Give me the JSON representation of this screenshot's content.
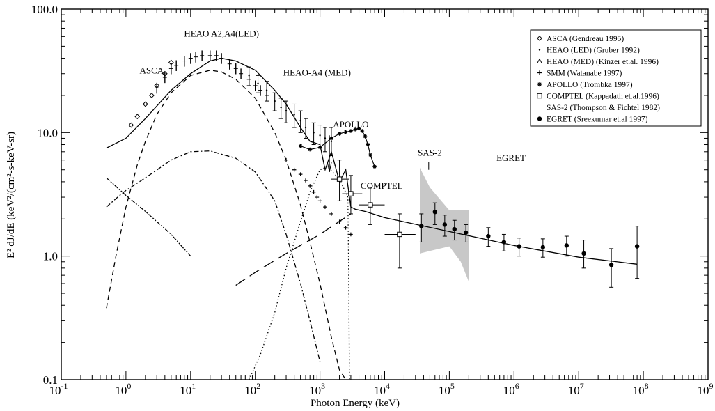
{
  "chart_data": {
    "type": "scatter",
    "title": "",
    "xlabel": "Photon Energy (keV)",
    "ylabel": "E² dJ/dE (keV²/(cm²-s-keV-sr)",
    "x_scale": "log",
    "y_scale": "log",
    "xlim": [
      0.1,
      1000000000
    ],
    "ylim": [
      0.1,
      100
    ],
    "grid": false,
    "legend_position": "top-right",
    "x_ticks": [
      {
        "base": "10",
        "exp": "-1"
      },
      {
        "base": "10",
        "exp": "0"
      },
      {
        "base": "10",
        "exp": "1"
      },
      {
        "base": "10",
        "exp": "2"
      },
      {
        "base": "10",
        "exp": "3"
      },
      {
        "base": "10",
        "exp": "4"
      },
      {
        "base": "10",
        "exp": "5"
      },
      {
        "base": "10",
        "exp": "6"
      },
      {
        "base": "10",
        "exp": "7"
      },
      {
        "base": "10",
        "exp": "8"
      },
      {
        "base": "10",
        "exp": "9"
      }
    ],
    "y_ticks": [
      {
        "value": 0.1,
        "label": "0.1"
      },
      {
        "value": 1,
        "label": "1.0"
      },
      {
        "value": 10,
        "label": "10.0"
      },
      {
        "value": 100,
        "label": "100.0"
      }
    ],
    "legend": [
      {
        "marker": "diamond",
        "label": "ASCA (Gendreau 1995)"
      },
      {
        "marker": "dot",
        "label": "HEAO (LED) (Gruber 1992)"
      },
      {
        "marker": "triangle",
        "label": "HEAO (MED) (Kinzer et.al. 1996)"
      },
      {
        "marker": "plus",
        "label": "SMM (Watanabe 1997)"
      },
      {
        "marker": "asterisk",
        "label": "APOLLO (Trombka 1997)"
      },
      {
        "marker": "square",
        "label": "COMPTEL (Kappadath et.al.1996)"
      },
      {
        "marker": "none",
        "label": "SAS-2 (Thompson & Fichtel 1982)"
      },
      {
        "marker": "filled-circle",
        "label": "EGRET (Sreekumar et.al 1997)"
      }
    ],
    "annotations": [
      {
        "text": "ASCA",
        "x": 2.5,
        "y": 30
      },
      {
        "text": "HEAO A2,A4(LED)",
        "x": 30,
        "y": 60
      },
      {
        "text": "HEAO-A4 (MED)",
        "x": 900,
        "y": 29
      },
      {
        "text": "APOLLO",
        "x": 3000,
        "y": 11
      },
      {
        "text": "COMPTEL",
        "x": 9000,
        "y": 3.5
      },
      {
        "text": "SAS-2",
        "x": 50000,
        "y": 6.5
      },
      {
        "text": "EGRET",
        "x": 900000,
        "y": 5.9
      }
    ],
    "series": [
      {
        "name": "ASCA (Gendreau 1995)",
        "style": "diamond",
        "x": [
          1.2,
          1.5,
          2,
          2.5,
          3,
          4,
          5
        ],
        "y": [
          11.5,
          13.5,
          17,
          20,
          24,
          30,
          37
        ]
      },
      {
        "name": "HEAO (LED) (Gruber 1992)",
        "style": "bars",
        "x": [
          3,
          4,
          5,
          6,
          8,
          10,
          12,
          15,
          20,
          25,
          30,
          40,
          50,
          60,
          80,
          100,
          120,
          150
        ],
        "y": [
          23,
          28,
          33,
          35,
          38,
          40,
          41,
          42,
          42,
          42,
          40,
          36,
          33,
          30,
          27,
          24,
          22,
          20
        ]
      },
      {
        "name": "HEAO (MED) (Kinzer et.al. 1996)",
        "style": "errorbar",
        "x": [
          80,
          110,
          150,
          200,
          250,
          300,
          400,
          500,
          600,
          800,
          1000,
          1200,
          1500
        ],
        "y": [
          29,
          25,
          22,
          18,
          16,
          15,
          14,
          12.5,
          11,
          10,
          9.5,
          9,
          8.5
        ],
        "err_lo": [
          24,
          21,
          18,
          15,
          13,
          12,
          11,
          10,
          9,
          8,
          7.5,
          7,
          6.5
        ],
        "err_hi": [
          34,
          29,
          26,
          21,
          19,
          18,
          17,
          15,
          13,
          12,
          11.5,
          11,
          11
        ]
      },
      {
        "name": "SMM (Watanabe 1997)",
        "style": "plus",
        "x": [
          300,
          400,
          500,
          600,
          700,
          800,
          900,
          1000,
          1200,
          1500,
          2000,
          2500,
          3000
        ],
        "y": [
          6,
          5,
          4.6,
          4.1,
          3.7,
          3.3,
          3,
          2.8,
          2.5,
          2.2,
          1.9,
          1.7,
          1.5
        ]
      },
      {
        "name": "APOLLO (Trombka 1997)",
        "style": "asterisk-line",
        "x": [
          500,
          700,
          1000,
          1500,
          2000,
          2500,
          3000,
          3500,
          4000,
          4500,
          5000,
          5500,
          6000,
          7000
        ],
        "y": [
          7.8,
          7.3,
          7.6,
          9,
          9.8,
          10.1,
          10.3,
          10.6,
          10.8,
          10.3,
          9.3,
          8.0,
          6.6,
          5.3
        ]
      },
      {
        "name": "COMPTEL (Kappadath et.al.1996)",
        "style": "square",
        "x": [
          2000,
          3000,
          6000,
          17000
        ],
        "y": [
          4.2,
          3.2,
          2.6,
          1.5
        ],
        "err_lo": [
          2.8,
          2.2,
          1.8,
          0.8
        ],
        "err_hi": [
          6,
          4.5,
          3.6,
          2.2
        ],
        "x_lo": [
          1500,
          2200,
          4000,
          10000
        ],
        "x_hi": [
          2800,
          4500,
          10000,
          30000
        ]
      },
      {
        "name": "SAS-2 (Thompson & Fichtel 1982)",
        "style": "band",
        "x": [
          35000,
          35000,
          50000,
          100000,
          200000,
          200000,
          150000,
          100000,
          50000
        ],
        "y": [
          1.05,
          5.2,
          3.6,
          2.35,
          2.35,
          0.62,
          0.9,
          1.2,
          1.1
        ]
      },
      {
        "name": "EGRET (Sreekumar et.al 1997)",
        "style": "filled-circle",
        "x": [
          37000,
          60000,
          85000,
          120000,
          180000,
          400000,
          700000,
          1200000,
          2800000,
          6500000,
          12000000,
          32000000,
          80000000
        ],
        "y": [
          1.75,
          2.28,
          1.8,
          1.65,
          1.55,
          1.45,
          1.3,
          1.2,
          1.18,
          1.22,
          1.05,
          0.85,
          1.2
        ],
        "err_lo": [
          1.3,
          1.8,
          1.45,
          1.35,
          1.3,
          1.2,
          1.1,
          1.0,
          0.98,
          1.0,
          0.8,
          0.56,
          0.66
        ],
        "err_hi": [
          2.2,
          2.7,
          2.15,
          1.95,
          1.8,
          1.7,
          1.5,
          1.4,
          1.38,
          1.45,
          1.35,
          1.15,
          1.75
        ]
      }
    ],
    "model_curves": [
      {
        "id": "total",
        "dash": "",
        "x": [
          0.5,
          1,
          2,
          5,
          10,
          20,
          30,
          50,
          100,
          200,
          300,
          500,
          700,
          1000,
          1200,
          1500,
          2000,
          2500,
          3000,
          3500,
          5000,
          10000,
          100000,
          1000000,
          10000000,
          80000000
        ],
        "y": [
          7.5,
          9,
          13,
          22,
          30,
          38,
          40,
          38,
          32,
          22,
          17,
          11,
          8.5,
          8,
          5,
          7,
          4,
          5,
          2.5,
          2.4,
          2.3,
          2.05,
          1.58,
          1.22,
          0.98,
          0.86
        ]
      },
      {
        "id": "thermal-dashed",
        "dash": "7,5",
        "x": [
          0.5,
          0.7,
          1,
          1.5,
          2,
          3,
          5,
          10,
          20,
          30,
          50,
          100,
          200,
          300,
          500,
          700,
          1000,
          1500,
          2000,
          2500
        ],
        "y": [
          0.38,
          1.0,
          2.5,
          5.5,
          8.5,
          14,
          21,
          29,
          32,
          31,
          27,
          19,
          10,
          6,
          2.6,
          1.3,
          0.6,
          0.22,
          0.12,
          0.1
        ]
      },
      {
        "id": "dash-dot",
        "dash": "7,3,2,3",
        "x": [
          0.5,
          0.8,
          1,
          2,
          5,
          10,
          20,
          50,
          100,
          200,
          300,
          500,
          700,
          1000
        ],
        "y": [
          2.5,
          3.1,
          3.4,
          4.3,
          6.0,
          7.0,
          7.1,
          6.2,
          4.8,
          2.8,
          1.5,
          0.6,
          0.3,
          0.14
        ]
      },
      {
        "id": "dash-dot-dot",
        "dash": "6,2,2,2,2,2",
        "x": [
          0.5,
          1,
          2,
          5,
          10
        ],
        "y": [
          4.3,
          3.1,
          2.3,
          1.5,
          1.0
        ]
      },
      {
        "id": "long-dash",
        "dash": "16,8",
        "x": [
          50,
          100,
          300,
          1000,
          3000
        ],
        "y": [
          0.58,
          0.74,
          1.05,
          1.5,
          2.2
        ]
      },
      {
        "id": "dotted",
        "dash": "1.5,3",
        "x": [
          80,
          120,
          200,
          300,
          500,
          700,
          1000,
          1300,
          2000,
          2700,
          2800,
          2850
        ],
        "y": [
          0.1,
          0.16,
          0.35,
          0.8,
          1.9,
          3.3,
          5,
          5.3,
          4.2,
          3,
          0.5,
          0.1
        ]
      }
    ]
  }
}
